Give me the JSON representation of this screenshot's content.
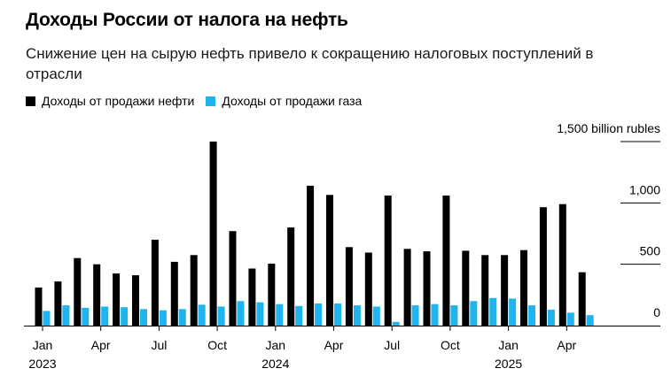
{
  "title": "Доходы России от налога на нефть",
  "subtitle": "Снижение цен на сырую нефть привело к сокращению налоговых поступлений в отрасли",
  "colors": {
    "oil": "#000000",
    "gas": "#1fb4ee"
  },
  "chart_data": {
    "type": "bar",
    "ylim": [
      0,
      1500
    ],
    "yticks": [
      {
        "value": 1500,
        "label": "1,500 billion rubles"
      },
      {
        "value": 1000,
        "label": "1,000"
      },
      {
        "value": 500,
        "label": "500"
      },
      {
        "value": 0,
        "label": "0"
      }
    ],
    "categories": [
      "2023-01",
      "2023-02",
      "2023-03",
      "2023-04",
      "2023-05",
      "2023-06",
      "2023-07",
      "2023-08",
      "2023-09",
      "2023-10",
      "2023-11",
      "2023-12",
      "2024-01",
      "2024-02",
      "2024-03",
      "2024-04",
      "2024-05",
      "2024-06",
      "2024-07",
      "2024-08",
      "2024-09",
      "2024-10",
      "2024-11",
      "2024-12",
      "2025-01",
      "2025-02",
      "2025-03",
      "2025-04",
      "2025-05"
    ],
    "xticks": [
      {
        "index": 0,
        "month": "Jan",
        "year": "2023"
      },
      {
        "index": 3,
        "month": "Apr",
        "year": ""
      },
      {
        "index": 6,
        "month": "Jul",
        "year": ""
      },
      {
        "index": 9,
        "month": "Oct",
        "year": ""
      },
      {
        "index": 12,
        "month": "Jan",
        "year": "2024"
      },
      {
        "index": 15,
        "month": "Apr",
        "year": ""
      },
      {
        "index": 18,
        "month": "Jul",
        "year": ""
      },
      {
        "index": 21,
        "month": "Oct",
        "year": ""
      },
      {
        "index": 24,
        "month": "Jan",
        "year": "2025"
      },
      {
        "index": 27,
        "month": "Apr",
        "year": ""
      }
    ],
    "series": [
      {
        "name": "Доходы от продажи нефти",
        "values": [
          310,
          360,
          550,
          500,
          425,
          410,
          700,
          520,
          575,
          1500,
          770,
          465,
          505,
          800,
          1140,
          1065,
          640,
          595,
          1060,
          625,
          605,
          1060,
          610,
          575,
          575,
          615,
          965,
          990,
          435
        ]
      },
      {
        "name": "Доходы от продажи газа",
        "values": [
          120,
          165,
          145,
          155,
          150,
          135,
          125,
          135,
          170,
          155,
          200,
          190,
          175,
          160,
          180,
          180,
          165,
          155,
          30,
          165,
          175,
          165,
          200,
          225,
          220,
          165,
          130,
          105,
          85
        ]
      }
    ]
  }
}
